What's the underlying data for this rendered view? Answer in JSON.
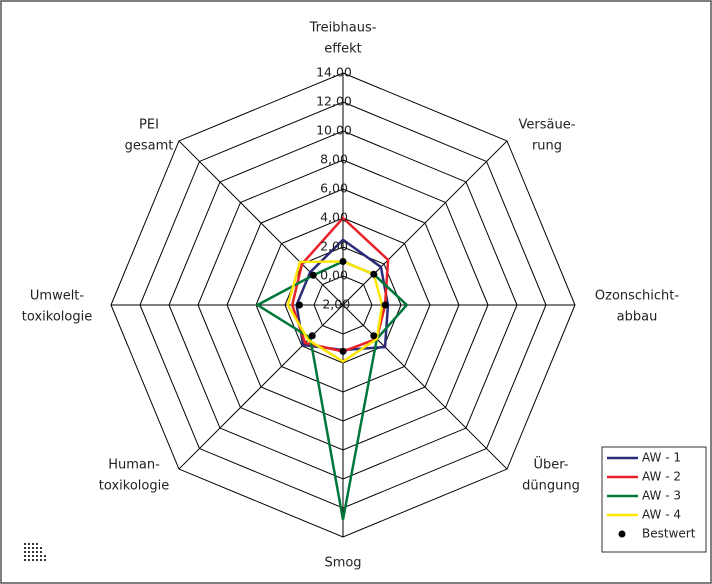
{
  "chart_data": {
    "type": "radar",
    "categories": [
      [
        "Treibhaus-",
        "effekt"
      ],
      [
        "Versäue-",
        "rung"
      ],
      [
        "Ozonschicht-",
        "abbau"
      ],
      [
        "Über-",
        "düngung"
      ],
      [
        "Smog"
      ],
      [
        "Human-",
        "toxikologie"
      ],
      [
        "Umwelt-",
        "toxikologie"
      ],
      [
        "PEI",
        "gesamt"
      ]
    ],
    "rlim": [
      -2,
      14
    ],
    "rticks": [
      {
        "value": -2,
        "label": "-2,00"
      },
      {
        "value": 0,
        "label": "0,00"
      },
      {
        "value": 2,
        "label": "2,00"
      },
      {
        "value": 4,
        "label": "4,00"
      },
      {
        "value": 6,
        "label": "6,00"
      },
      {
        "value": 8,
        "label": "8,00"
      },
      {
        "value": 10,
        "label": "10,00"
      },
      {
        "value": 12,
        "label": "12,00"
      },
      {
        "value": 14,
        "label": "14,00"
      }
    ],
    "series": [
      {
        "name": "AW - 1",
        "color": "#2b2b78",
        "values": [
          2.5,
          1.7,
          1.1,
          2.1,
          1.1,
          1.9,
          1.2,
          1.2
        ]
      },
      {
        "name": "AW - 2",
        "color": "#e82027",
        "values": [
          4.0,
          2.4,
          0.9,
          1.3,
          1.2,
          1.7,
          1.5,
          2.0
        ]
      },
      {
        "name": "AW - 3",
        "color": "#00773a",
        "values": [
          1.0,
          1.0,
          2.4,
          1.3,
          12.8,
          1.2,
          3.9,
          0.9
        ]
      },
      {
        "name": "AW - 4",
        "color": "#ffe600",
        "values": [
          1.0,
          1.0,
          0.7,
          1.3,
          1.9,
          1.4,
          1.8,
          2.2
        ]
      }
    ],
    "best": {
      "name": "Bestwert",
      "color": "#000000",
      "values": [
        1.0,
        1.0,
        0.9,
        1.0,
        1.2,
        1.0,
        1.0,
        0.9
      ]
    }
  }
}
